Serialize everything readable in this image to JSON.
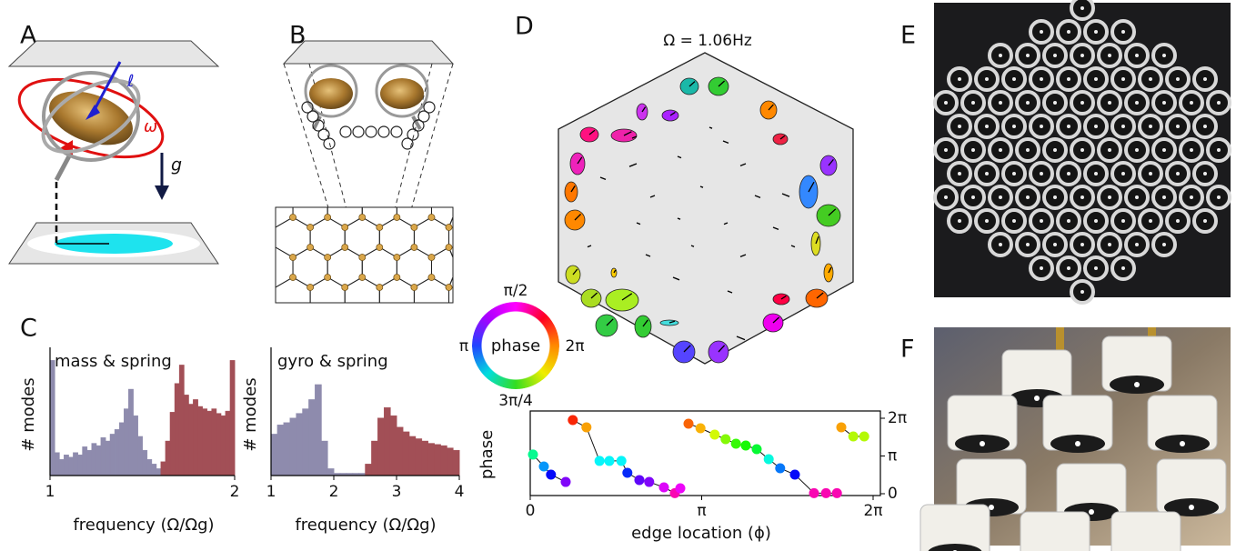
{
  "panel_labels": [
    "A",
    "B",
    "C",
    "D",
    "E",
    "F"
  ],
  "panel_a": {
    "angular_momentum": "ℓ",
    "spin": "ω",
    "gravity": "g"
  },
  "panel_c": {
    "charts": [
      {
        "type": "histogram",
        "title": "mass & spring",
        "ylabel": "# modes",
        "xlabel": "frequency (Ω/Ωg)",
        "xlim": [
          1,
          2
        ],
        "xticks": [
          1,
          2
        ],
        "ylim": [
          0,
          105
        ],
        "series": [
          {
            "color": "#8e8bad",
            "bins": [
              1,
              1.025,
              1.05,
              1.075,
              1.1,
              1.125,
              1.15,
              1.175,
              1.2,
              1.225,
              1.25,
              1.275,
              1.3,
              1.325,
              1.35,
              1.375,
              1.4,
              1.425,
              1.45,
              1.475,
              1.5,
              1.525,
              1.55,
              1.575,
              1.6
            ],
            "counts": [
              100,
              20,
              14,
              18,
              16,
              20,
              18,
              25,
              22,
              28,
              26,
              33,
              30,
              36,
              40,
              46,
              58,
              75,
              52,
              34,
              22,
              14,
              10,
              6
            ]
          },
          {
            "color": "#a24f56",
            "bins": [
              1.6,
              1.625,
              1.65,
              1.675,
              1.7,
              1.725,
              1.75,
              1.775,
              1.8,
              1.825,
              1.85,
              1.875,
              1.9,
              1.925,
              1.95,
              1.975,
              2
            ],
            "counts": [
              12,
              30,
              55,
              80,
              96,
              70,
              62,
              66,
              60,
              58,
              56,
              58,
              54,
              52,
              56,
              100
            ]
          }
        ]
      },
      {
        "type": "histogram",
        "title": "gyro & spring",
        "ylabel": "# modes",
        "xlabel": "frequency (Ω/Ωg)",
        "xlim": [
          1,
          4
        ],
        "xticks": [
          1,
          2,
          3,
          4
        ],
        "ylim": [
          0,
          105
        ],
        "series": [
          {
            "color": "#8e8bad",
            "bins": [
              1,
              1.1,
              1.2,
              1.3,
              1.4,
              1.5,
              1.6,
              1.7,
              1.8,
              1.9,
              2,
              2.1,
              2.2,
              2.3,
              2.4,
              2.5
            ],
            "counts": [
              36,
              44,
              46,
              50,
              54,
              58,
              66,
              79,
              30,
              6,
              2,
              2,
              2,
              2,
              2
            ]
          },
          {
            "color": "#a24f56",
            "bins": [
              2.5,
              2.6,
              2.7,
              2.8,
              2.9,
              3,
              3.1,
              3.2,
              3.3,
              3.4,
              3.5,
              3.6,
              3.7,
              3.8,
              3.9,
              4
            ],
            "counts": [
              10,
              30,
              50,
              59,
              52,
              42,
              38,
              34,
              32,
              30,
              28,
              27,
              26,
              24,
              22
            ]
          }
        ]
      }
    ]
  },
  "panel_d": {
    "title": "Ω = 1.06Hz",
    "phase_wheel": {
      "center": "phase",
      "top": "π/2",
      "left": "π",
      "right": "2π",
      "bottom": "3π/4"
    },
    "chart": {
      "type": "scatter",
      "ylabel": "phase",
      "xlabel": "edge location (ϕ)",
      "xlim": [
        0,
        6.2832
      ],
      "xticks": [
        0,
        {
          "value": 3.1416,
          "label": "π"
        },
        {
          "value": 6.2832,
          "label": "2π"
        }
      ],
      "ylim": [
        0,
        6.2832
      ],
      "yticks": [
        0,
        {
          "value": 3.1416,
          "label": "π"
        },
        {
          "value": 6.2832,
          "label": "2π"
        }
      ],
      "series": [
        {
          "x": [
            0.05,
            0.25,
            0.38,
            0.65
          ],
          "y": [
            3.26,
            2.27,
            1.59,
            0.98
          ]
        },
        {
          "x": [
            0.78,
            1.03,
            1.27,
            1.45,
            1.67,
            1.78,
            2.0,
            2.18,
            2.45,
            2.65,
            2.75
          ],
          "y": [
            6.13,
            5.53,
            2.73,
            2.73,
            2.73,
            1.74,
            1.14,
            0.98,
            0.53,
            0.05,
            0.45
          ]
        },
        {
          "x": [
            2.9,
            3.12,
            3.38,
            3.58,
            3.77,
            3.95,
            4.15,
            4.37,
            4.58,
            4.85,
            5.2,
            5.42,
            5.62
          ],
          "y": [
            5.83,
            5.45,
            4.92,
            4.54,
            4.16,
            4.01,
            3.71,
            2.88,
            2.12,
            1.59,
            0.05,
            0.05,
            0.05
          ]
        },
        {
          "x": [
            5.7,
            5.92,
            6.12
          ],
          "y": [
            5.53,
            4.77,
            4.77
          ]
        }
      ]
    }
  }
}
